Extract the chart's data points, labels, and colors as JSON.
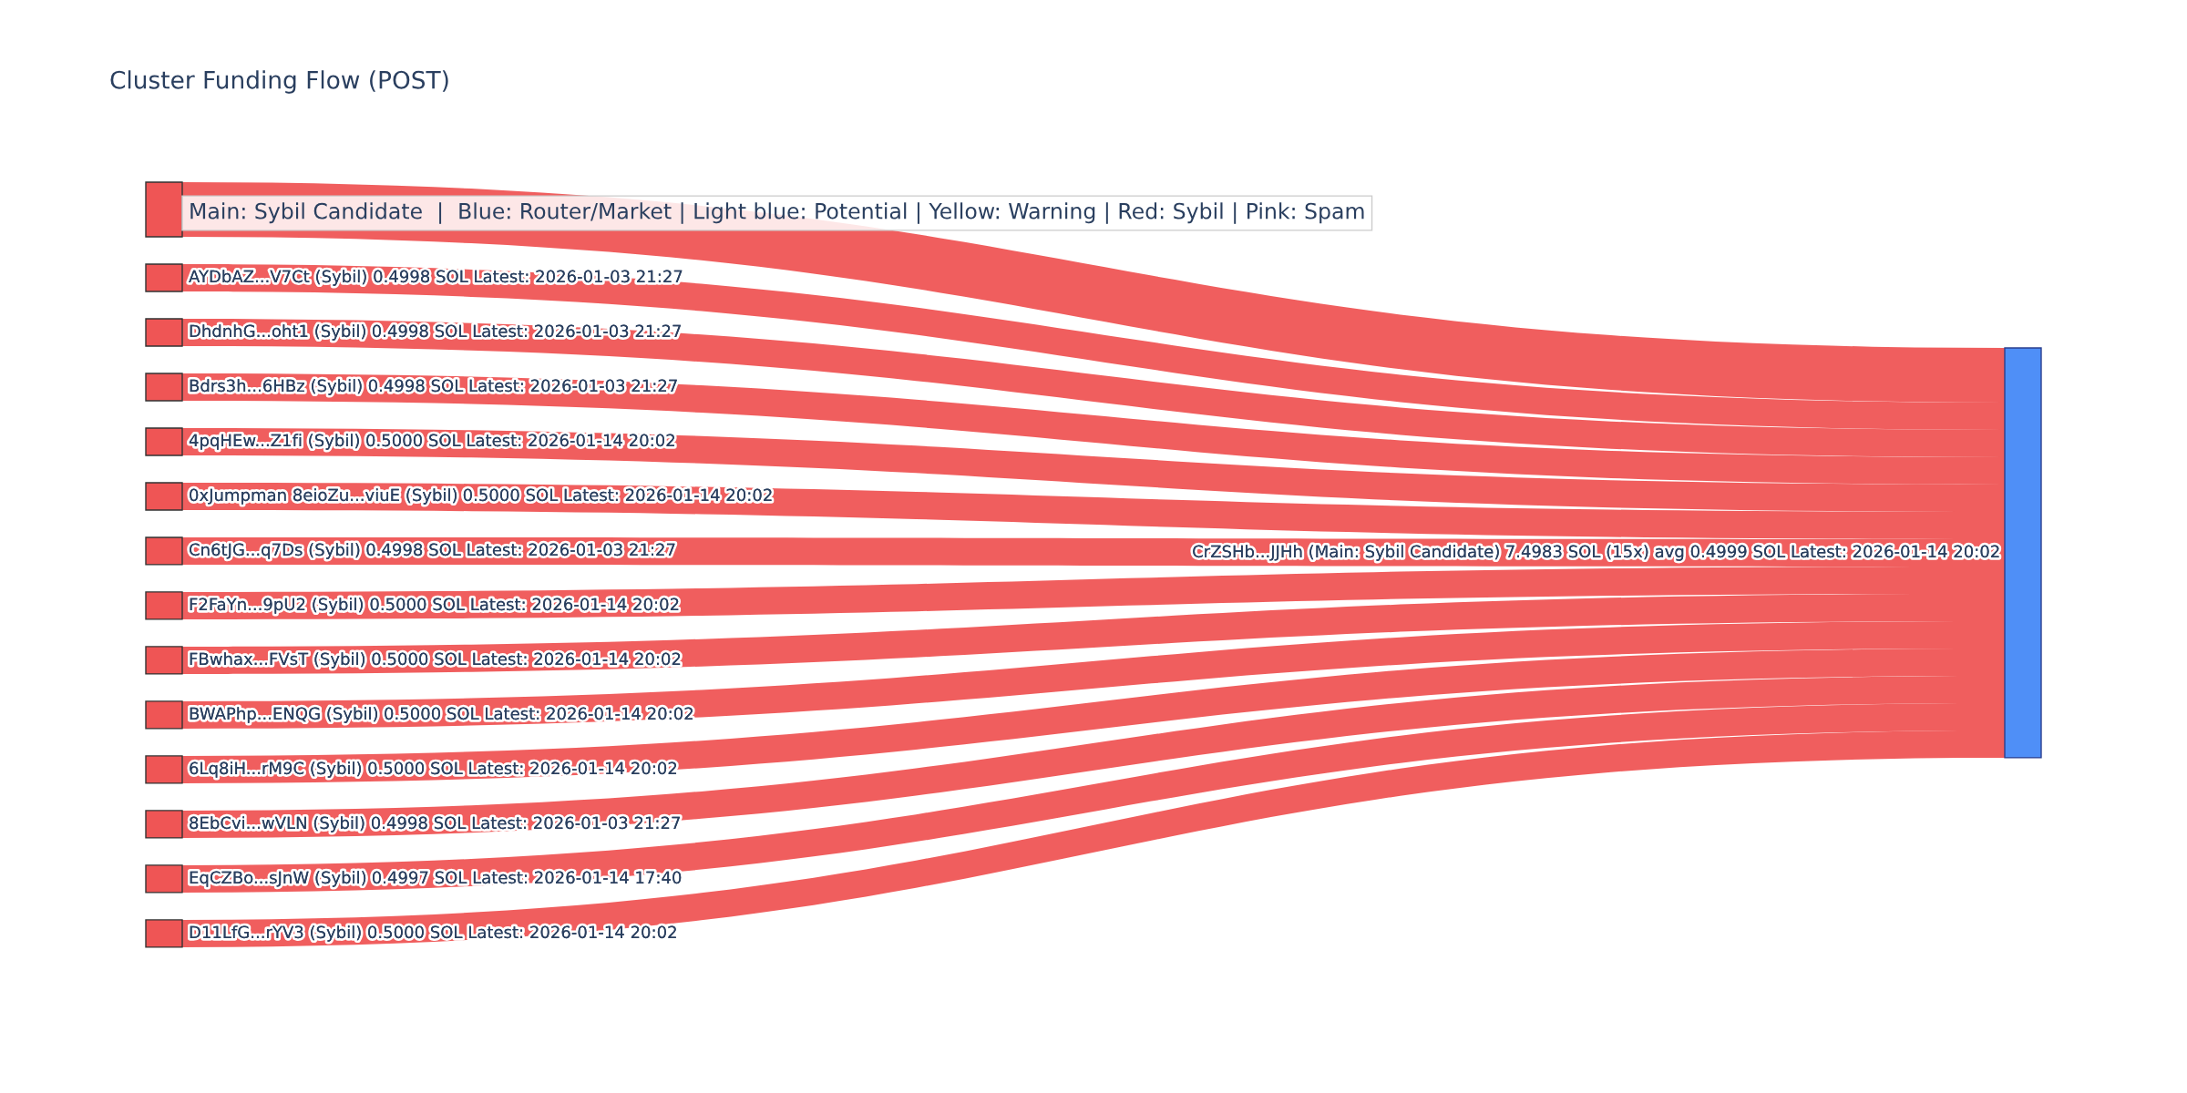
{
  "chart_data": {
    "type": "other",
    "title": "Cluster Funding Flow (POST)",
    "categories": [
      null,
      "AYDbAZ...V7Ct (Sybil)",
      "DhdnhG...oht1 (Sybil)",
      "Bdrs3h...6HBz (Sybil)",
      "4pqHEw...Z1fi (Sybil)",
      "0xJumpman 8eioZu...viuE (Sybil)",
      "Cn6tJG...q7Ds (Sybil)",
      "F2FaYn...9pU2 (Sybil)",
      "FBwhax...FVsT (Sybil)",
      "BWAPhp...ENQG (Sybil)",
      "6Lq8iH...rM9C (Sybil)",
      "8EbCvi...wVLN (Sybil)",
      "EqCZBo...sJnW (Sybil)",
      "D11LfG...rYV3 (Sybil)",
      "CrZSHb...JJHh (Main: Sybil Candidate)"
    ],
    "values": [
      null,
      0.4998,
      0.4998,
      0.4998,
      0.5,
      0.5,
      0.4998,
      0.5,
      0.5,
      0.5,
      0.5,
      0.4998,
      0.4997,
      0.5,
      7.4983
    ],
    "value_labels": [
      null,
      "0.4998 SOL Latest: 2026-01-03 21:27",
      "0.4998 SOL Latest: 2026-01-03 21:27",
      "0.4998 SOL Latest: 2026-01-03 21:27",
      "0.5000 SOL Latest: 2026-01-14 20:02",
      "0.5000 SOL Latest: 2026-01-14 20:02",
      "0.4998 SOL Latest: 2026-01-03 21:27",
      "0.5000 SOL Latest: 2026-01-14 20:02",
      "0.5000 SOL Latest: 2026-01-14 20:02",
      "0.5000 SOL Latest: 2026-01-14 20:02",
      "0.5000 SOL Latest: 2026-01-14 20:02",
      "0.4998 SOL Latest: 2026-01-03 21:27",
      "0.4997 SOL Latest: 2026-01-14 17:40",
      "0.5000 SOL Latest: 2026-01-14 20:02",
      "7.4983 SOL (15x) avg 0.4999 SOL Latest: 2026-01-14 20:02"
    ],
    "colors": [
      "#ef5555",
      "#ef5555",
      "#ef5555",
      "#ef5555",
      "#ef5555",
      "#ef5555",
      "#ef5555",
      "#ef5555",
      "#ef5555",
      "#ef5555",
      "#ef5555",
      "#ef5555",
      "#ef5555",
      "#ef5555",
      "#4f8ff7"
    ],
    "annotations": [
      "Main: Sybil Candidate  |  Blue: Router/Market | Light blue: Potential | Yellow: Warning | Red: Sybil | Pink: Spam"
    ]
  }
}
